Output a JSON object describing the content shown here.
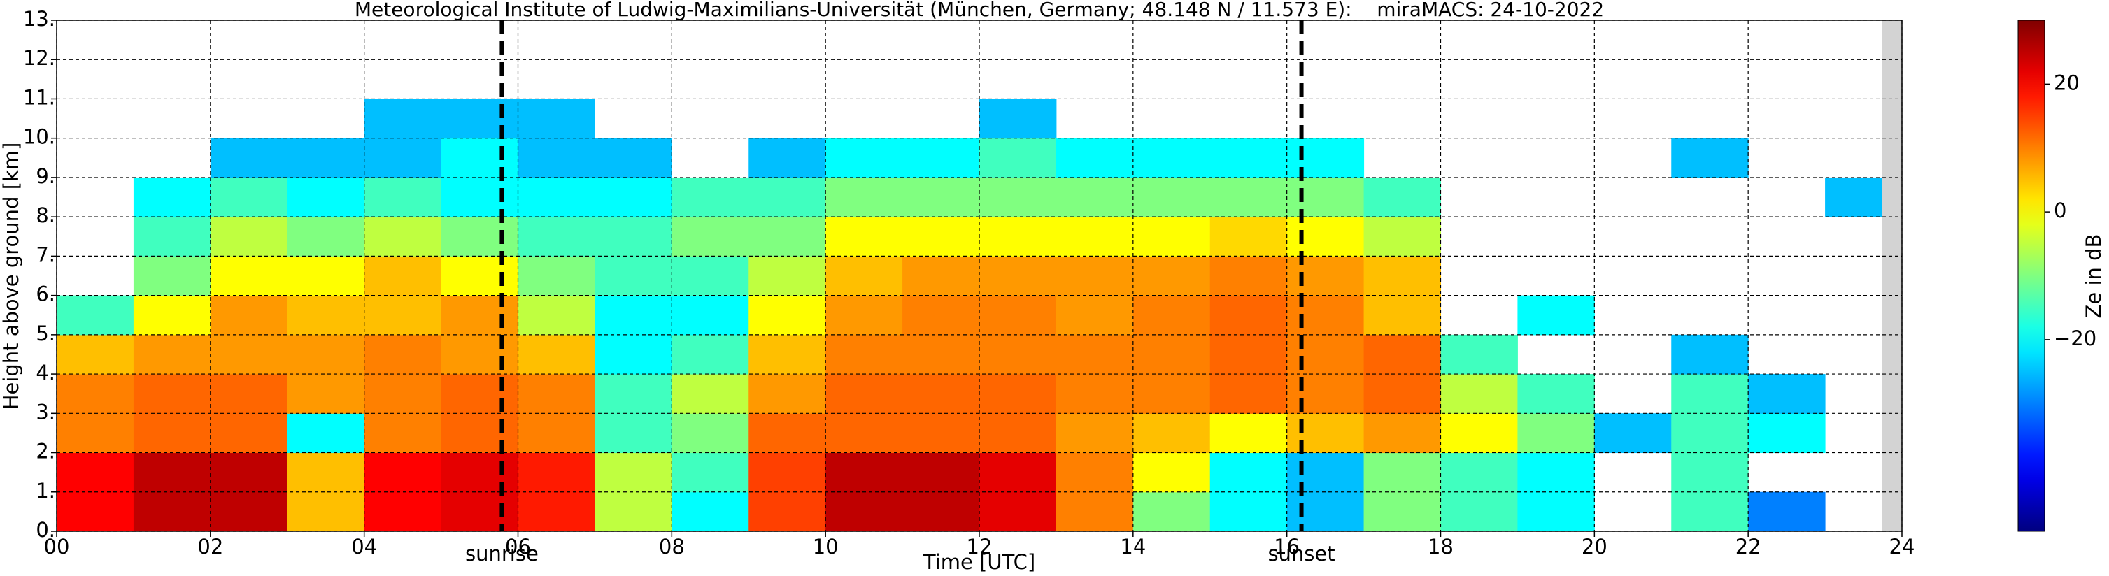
{
  "chart_data": {
    "type": "heatmap",
    "title": "Meteorological Institute of Ludwig-Maximilians-Universität (München, Germany; 48.148 N / 11.573 E):    miraMACS: 24-10-2022",
    "x_label": "Time [UTC]",
    "y_label": "Height above ground [km]",
    "colorbar_label": "Ze in dB",
    "colormap": "jet",
    "grid": true,
    "xlim": [
      0,
      24
    ],
    "ylim": [
      0,
      13
    ],
    "clim": [
      -50,
      30
    ],
    "xticks": [
      {
        "value": 0,
        "label": "00"
      },
      {
        "value": 2,
        "label": "02"
      },
      {
        "value": 4,
        "label": "04"
      },
      {
        "value": 6,
        "label": "06"
      },
      {
        "value": 8,
        "label": "08"
      },
      10,
      12,
      14,
      16,
      18,
      20,
      22,
      24
    ],
    "yticks": [
      {
        "value": 0,
        "label": "0."
      },
      {
        "value": 1,
        "label": "1."
      },
      {
        "value": 2,
        "label": "2."
      },
      {
        "value": 3,
        "label": "3."
      },
      {
        "value": 4,
        "label": "4."
      },
      {
        "value": 5,
        "label": "5."
      },
      {
        "value": 6,
        "label": "6."
      },
      {
        "value": 7,
        "label": "7."
      },
      {
        "value": 8,
        "label": "8."
      },
      {
        "value": 9,
        "label": "9."
      },
      {
        "value": 10,
        "label": "10."
      },
      {
        "value": 11,
        "label": "11."
      },
      {
        "value": 12,
        "label": "12."
      },
      {
        "value": 13,
        "label": "13."
      }
    ],
    "cticks": [
      20,
      0,
      {
        "value": -20,
        "label": "−20"
      }
    ],
    "annotations": [
      {
        "label": "sunrise",
        "x": 5.79
      },
      {
        "label": "sunset",
        "x": 16.19
      }
    ],
    "x_bins": [
      0,
      1,
      2,
      3,
      4,
      5,
      6,
      7,
      8,
      9,
      10,
      11,
      12,
      13,
      14,
      15,
      16,
      17,
      18,
      19,
      20,
      21,
      22,
      23,
      24
    ],
    "y_bins": [
      0,
      1,
      2,
      3,
      4,
      5,
      6,
      7,
      8,
      9,
      10,
      11,
      12,
      13
    ],
    "z": [
      [
        20,
        20,
        10,
        10,
        5,
        -15,
        null,
        null,
        null,
        null,
        null,
        null,
        null
      ],
      [
        25,
        25,
        12,
        12,
        8,
        0,
        -10,
        -15,
        -20,
        null,
        null,
        null,
        null
      ],
      [
        25,
        25,
        12,
        12,
        8,
        8,
        0,
        -5,
        -15,
        -25,
        null,
        null,
        null
      ],
      [
        5,
        5,
        -20,
        8,
        8,
        5,
        0,
        -10,
        -20,
        -25,
        null,
        null,
        null
      ],
      [
        20,
        20,
        10,
        10,
        10,
        5,
        5,
        -5,
        -15,
        -25,
        -25,
        null,
        null
      ],
      [
        22,
        22,
        12,
        12,
        8,
        8,
        0,
        -10,
        -20,
        -20,
        -25,
        null,
        null
      ],
      [
        18,
        18,
        10,
        10,
        5,
        -5,
        -10,
        -15,
        -20,
        -25,
        -25,
        null,
        null
      ],
      [
        -5,
        -5,
        -15,
        -15,
        -20,
        -20,
        -15,
        -15,
        -20,
        -25,
        null,
        null,
        null
      ],
      [
        -20,
        -15,
        -10,
        -5,
        -15,
        -20,
        -15,
        -10,
        -15,
        null,
        null,
        null,
        null
      ],
      [
        15,
        15,
        12,
        8,
        5,
        0,
        -5,
        -10,
        -15,
        -25,
        null,
        null,
        null
      ],
      [
        25,
        25,
        12,
        12,
        10,
        8,
        5,
        0,
        -10,
        -20,
        null,
        null,
        null
      ],
      [
        25,
        25,
        12,
        12,
        10,
        10,
        8,
        0,
        -10,
        -20,
        null,
        null,
        null
      ],
      [
        22,
        22,
        12,
        12,
        10,
        10,
        8,
        0,
        -10,
        -15,
        -25,
        null,
        null
      ],
      [
        10,
        10,
        8,
        10,
        10,
        8,
        8,
        0,
        -10,
        -20,
        null,
        null,
        null
      ],
      [
        -10,
        0,
        5,
        10,
        10,
        10,
        8,
        0,
        -10,
        -20,
        null,
        null,
        null
      ],
      [
        -20,
        -20,
        0,
        12,
        12,
        12,
        10,
        3,
        -10,
        -20,
        null,
        null,
        null
      ],
      [
        -25,
        -25,
        5,
        10,
        10,
        10,
        8,
        0,
        -10,
        -20,
        null,
        null,
        null
      ],
      [
        -10,
        -10,
        8,
        12,
        12,
        5,
        5,
        -5,
        -15,
        null,
        null,
        null,
        null
      ],
      [
        -15,
        -15,
        0,
        -5,
        -15,
        null,
        null,
        null,
        null,
        null,
        null,
        null,
        null
      ],
      [
        -20,
        -20,
        -10,
        -15,
        null,
        -20,
        null,
        null,
        null,
        null,
        null,
        null,
        null
      ],
      [
        null,
        null,
        -25,
        null,
        null,
        null,
        null,
        null,
        null,
        null,
        null,
        null,
        null
      ],
      [
        -15,
        -15,
        -15,
        -15,
        -25,
        null,
        null,
        null,
        null,
        -25,
        null,
        null,
        null
      ],
      [
        -30,
        null,
        -20,
        -25,
        null,
        null,
        null,
        null,
        null,
        null,
        null,
        null,
        null
      ],
      [
        null,
        null,
        null,
        null,
        null,
        null,
        null,
        null,
        -25,
        null,
        null,
        null,
        null
      ]
    ]
  }
}
